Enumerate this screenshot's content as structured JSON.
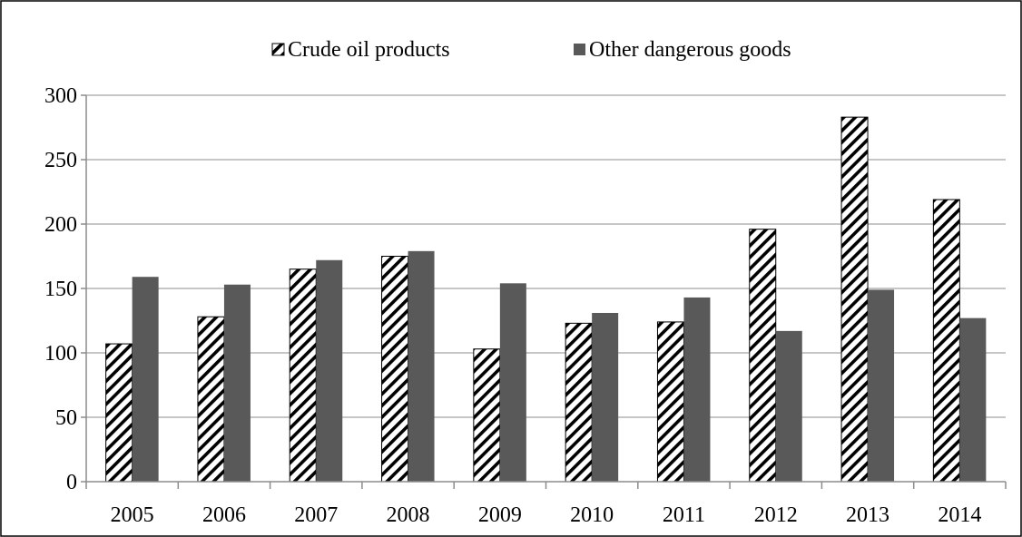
{
  "chart_data": {
    "type": "bar",
    "title": "",
    "xlabel": "",
    "ylabel": "",
    "categories": [
      "2005",
      "2006",
      "2007",
      "2008",
      "2009",
      "2010",
      "2011",
      "2012",
      "2013",
      "2014"
    ],
    "series": [
      {
        "name": "Crude oil products",
        "values": [
          107,
          128,
          165,
          175,
          103,
          123,
          124,
          196,
          283,
          219
        ],
        "color": "#000000",
        "pattern": "diagonal-hatch"
      },
      {
        "name": "Other dangerous goods",
        "values": [
          159,
          153,
          172,
          179,
          154,
          131,
          143,
          117,
          149,
          127
        ],
        "color": "#595959",
        "pattern": "solid"
      }
    ],
    "ylim": [
      0,
      300
    ],
    "yticks": [
      0,
      50,
      100,
      150,
      200,
      250,
      300
    ],
    "grid": true,
    "legend_position": "top"
  }
}
